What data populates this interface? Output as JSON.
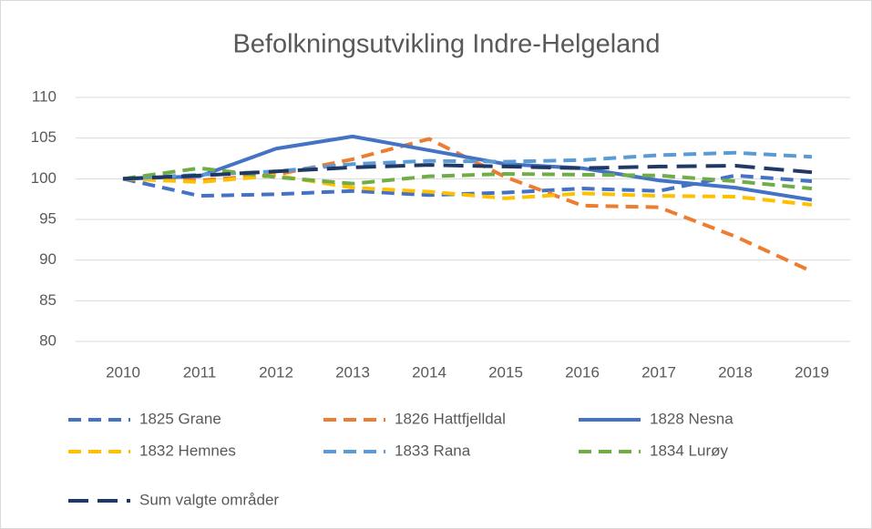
{
  "chart_data": {
    "type": "line",
    "title": "Befolkningsutvikling Indre-Helgeland",
    "categories": [
      "2010",
      "2011",
      "2012",
      "2013",
      "2014",
      "2015",
      "2016",
      "2017",
      "2018",
      "2019"
    ],
    "ylim": [
      80,
      110
    ],
    "yticks": [
      80,
      85,
      90,
      95,
      100,
      105,
      110
    ],
    "grid": true,
    "series": [
      {
        "name": "1825 Grane",
        "color": "#4472c4",
        "style": "dashed",
        "values": [
          100,
          97.9,
          98.1,
          98.5,
          98.0,
          98.3,
          98.8,
          98.5,
          100.4,
          99.7
        ]
      },
      {
        "name": "1826 Hattfjelldal",
        "color": "#ed7d31",
        "style": "dashed",
        "values": [
          100,
          99.8,
          100.5,
          102.4,
          104.9,
          100.2,
          96.7,
          96.5,
          92.9,
          88.6
        ]
      },
      {
        "name": "1828 Nesna",
        "color": "#4472c4",
        "style": "solid",
        "values": [
          100,
          100.3,
          103.7,
          105.2,
          103.5,
          101.8,
          101.3,
          99.8,
          98.9,
          97.4
        ]
      },
      {
        "name": "1832 Hemnes",
        "color": "#ffc000",
        "style": "dashed",
        "values": [
          100,
          99.6,
          100.4,
          98.9,
          98.4,
          97.6,
          98.2,
          97.9,
          97.8,
          96.8
        ]
      },
      {
        "name": "1833 Rana",
        "color": "#5b9bd5",
        "style": "dashed",
        "values": [
          100,
          100.5,
          100.9,
          101.8,
          102.2,
          102.1,
          102.3,
          102.9,
          103.2,
          102.7
        ]
      },
      {
        "name": "1834 Lurøy",
        "color": "#70ad47",
        "style": "dashed",
        "values": [
          100,
          101.3,
          100.2,
          99.4,
          100.3,
          100.6,
          100.5,
          100.4,
          99.7,
          98.8
        ]
      },
      {
        "name": "Sum valgte områder",
        "color": "#203864",
        "style": "longdash",
        "values": [
          100,
          100.4,
          100.9,
          101.4,
          101.7,
          101.5,
          101.3,
          101.5,
          101.6,
          100.8
        ]
      }
    ]
  }
}
